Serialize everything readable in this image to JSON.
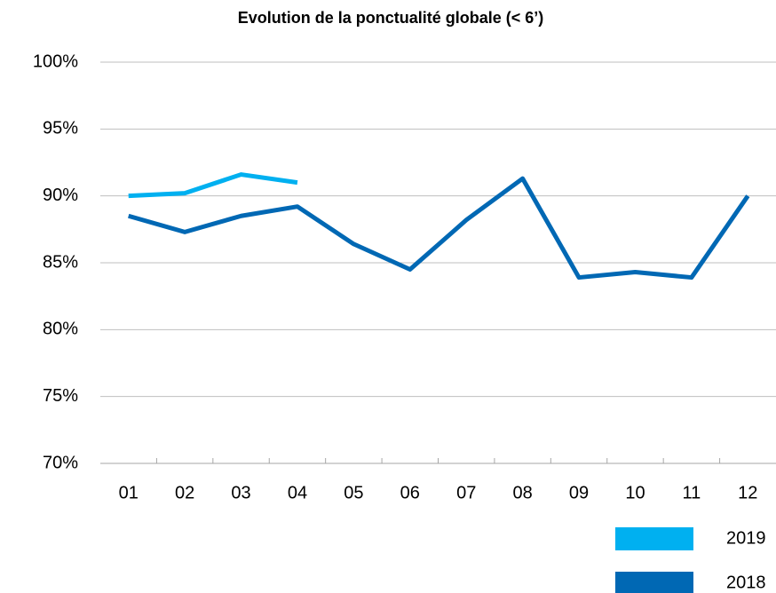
{
  "chart_data": {
    "type": "line",
    "title": "Evolution de la ponctualité globale (< 6’)",
    "categories": [
      "01",
      "02",
      "03",
      "04",
      "05",
      "06",
      "07",
      "08",
      "09",
      "10",
      "11",
      "12"
    ],
    "series": [
      {
        "name": "2019",
        "color": "#00b0f0",
        "values": [
          90.0,
          90.2,
          91.6,
          91.0,
          null,
          null,
          null,
          null,
          null,
          null,
          null,
          null
        ]
      },
      {
        "name": "2018",
        "color": "#0068b4",
        "values": [
          88.5,
          87.3,
          88.5,
          89.2,
          86.4,
          84.5,
          88.2,
          91.3,
          83.9,
          84.3,
          83.9,
          90.0
        ]
      }
    ],
    "ylim": [
      70,
      100
    ],
    "yticks": [
      {
        "value": 70,
        "label": "70%"
      },
      {
        "value": 75,
        "label": "75%"
      },
      {
        "value": 80,
        "label": "80%"
      },
      {
        "value": 85,
        "label": "85%"
      },
      {
        "value": 90,
        "label": "90%"
      },
      {
        "value": 95,
        "label": "95%"
      },
      {
        "value": 100,
        "label": "100%"
      }
    ],
    "grid": true,
    "legend": "bottom-right"
  }
}
